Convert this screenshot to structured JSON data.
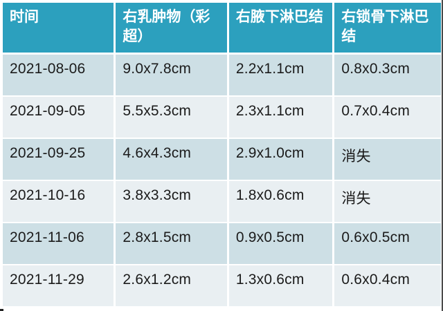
{
  "table": {
    "columns": [
      {
        "label": "时间"
      },
      {
        "label": "右乳肿物（彩超）"
      },
      {
        "label": "右腋下淋巴结"
      },
      {
        "label": "右锁骨下淋巴结"
      }
    ],
    "rows": [
      [
        "2021-08-06",
        "9.0x7.8cm",
        "2.2x1.1cm",
        "0.8x0.3cm"
      ],
      [
        "2021-09-05",
        "5.5x5.3cm",
        "2.3x1.1cm",
        "0.7x0.4cm"
      ],
      [
        "2021-09-25",
        "4.6x4.3cm",
        "2.9x1.0cm",
        "消失"
      ],
      [
        "2021-10-16",
        "3.8x3.3cm",
        "1.8x0.6cm",
        "消失"
      ],
      [
        "2021-11-06",
        "2.8x1.5cm",
        "0.9x0.5cm",
        "0.6x0.5cm"
      ],
      [
        "2021-11-29",
        "2.6x1.2cm",
        "1.3x0.6cm",
        "0.6x0.4cm"
      ]
    ],
    "colors": {
      "header_bg": "#2CA0BE",
      "header_text": "#FFFFFF",
      "row_dark": "#CDDFE5",
      "row_light": "#E9EFF2",
      "cell_text": "#1B1B1B",
      "divider": "#FFFFFF"
    }
  }
}
